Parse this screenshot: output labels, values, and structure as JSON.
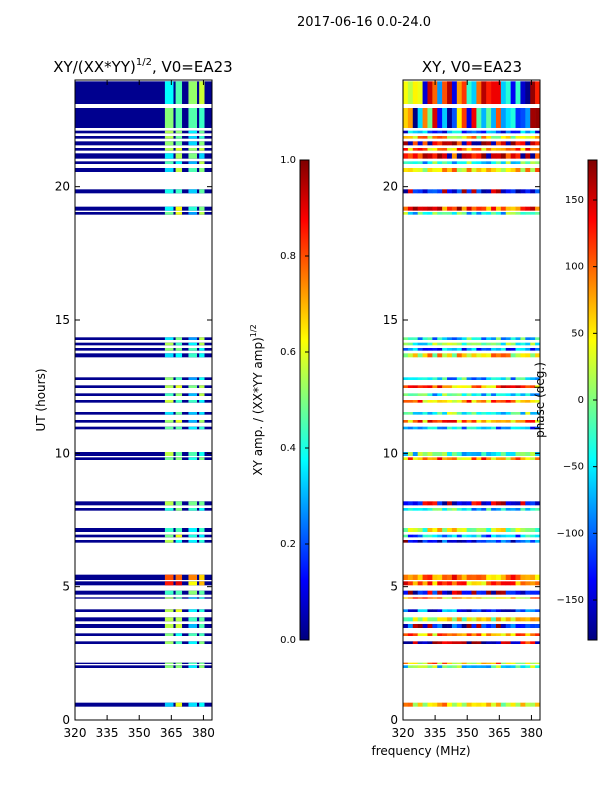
{
  "suptitle": "2017-06-16 0.0-24.0",
  "xlabel": "frequency (MHz)",
  "chart_data": [
    {
      "type": "heatmap",
      "title": "XY/(XX*YY)^1/2, V0=EA23",
      "title_main": "XY/(XX*YY)",
      "title_exp": "1/2",
      "title_tail": ", V0=EA23",
      "ylabel": "UT (hours)",
      "xlim": [
        320,
        384
      ],
      "ylim": [
        0,
        24
      ],
      "xticks": [
        "320",
        "335",
        "350",
        "365",
        "380"
      ],
      "yticks": [
        "0",
        "5",
        "10",
        "15",
        "20"
      ],
      "colorbar": {
        "label": "XY amp. / (XX*YY amp)^1/2",
        "label_main": "XY amp. / (XX*YY amp)",
        "label_exp": "1/2",
        "range": [
          0.0,
          1.0
        ],
        "ticks": [
          "0.0",
          "0.2",
          "0.4",
          "0.6",
          "0.8",
          "1.0"
        ]
      }
    },
    {
      "type": "heatmap",
      "title": "XY, V0=EA23",
      "xlim": [
        320,
        384
      ],
      "ylim": [
        0,
        24
      ],
      "xticks": [
        "320",
        "335",
        "350",
        "365",
        "380"
      ],
      "yticks": [
        "0",
        "5",
        "10",
        "15",
        "20"
      ],
      "colorbar": {
        "label": "phase (deg.)",
        "range": [
          -180,
          180
        ],
        "ticks": [
          "−150",
          "−100",
          "−50",
          "0",
          "50",
          "100",
          "150"
        ]
      }
    }
  ],
  "data_bands": [
    [
      0.5,
      0.65
    ],
    [
      1.95,
      2.05
    ],
    [
      2.1,
      2.15
    ],
    [
      2.85,
      2.95
    ],
    [
      3.15,
      3.25
    ],
    [
      3.45,
      3.6
    ],
    [
      3.7,
      3.85
    ],
    [
      4.05,
      4.15
    ],
    [
      4.55,
      4.6
    ],
    [
      4.7,
      4.85
    ],
    [
      5.05,
      5.2
    ],
    [
      5.25,
      5.45
    ],
    [
      6.65,
      6.75
    ],
    [
      6.85,
      6.95
    ],
    [
      7.05,
      7.2
    ],
    [
      7.85,
      7.95
    ],
    [
      8.05,
      8.2
    ],
    [
      9.75,
      9.85
    ],
    [
      9.9,
      10.05
    ],
    [
      10.9,
      11.0
    ],
    [
      11.15,
      11.25
    ],
    [
      11.45,
      11.55
    ],
    [
      11.9,
      12.0
    ],
    [
      12.15,
      12.25
    ],
    [
      12.45,
      12.55
    ],
    [
      12.75,
      12.85
    ],
    [
      13.6,
      13.75
    ],
    [
      13.85,
      13.95
    ],
    [
      14.05,
      14.15
    ],
    [
      14.25,
      14.35
    ],
    [
      18.95,
      19.05
    ],
    [
      19.1,
      19.25
    ],
    [
      19.75,
      19.9
    ],
    [
      20.55,
      20.7
    ],
    [
      20.85,
      20.95
    ],
    [
      21.05,
      21.25
    ],
    [
      21.35,
      21.45
    ],
    [
      21.55,
      21.7
    ],
    [
      21.8,
      21.9
    ],
    [
      22.0,
      22.1
    ],
    [
      22.2,
      22.95
    ],
    [
      23.1,
      23.95
    ]
  ]
}
